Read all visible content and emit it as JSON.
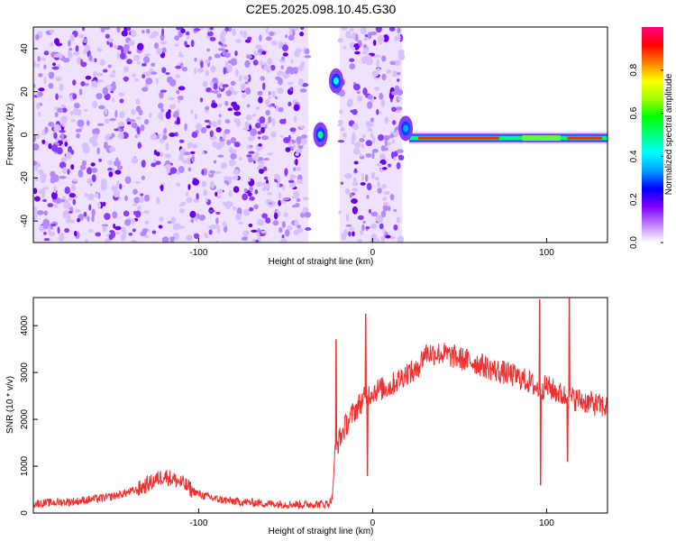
{
  "title": "C2E5.2025.098.10.45.G30",
  "chart_data": [
    {
      "id": "spectrogram",
      "type": "heatmap",
      "xlabel": "Height of straight line (km)",
      "ylabel": "Frequency (Hz)",
      "xlim": [
        -195,
        135
      ],
      "ylim": [
        -50,
        50
      ],
      "xticks": [
        -100,
        0,
        100
      ],
      "xtick_labels": [
        "-100",
        "0",
        "100"
      ],
      "yticks": [
        -40,
        -20,
        0,
        20,
        40
      ],
      "ytick_labels": [
        "-40",
        "-20",
        "0",
        "20",
        "40"
      ],
      "colorbar": {
        "label": "Normalized spectral amplitude",
        "range": [
          0.0,
          1.0
        ],
        "ticks": [
          0.0,
          0.2,
          0.4,
          0.6,
          0.8
        ],
        "tick_labels": [
          "0.0",
          "0.2",
          "0.4",
          "0.6",
          "0.8"
        ],
        "colors": [
          "#ffffff",
          "#c080ff",
          "#8000ff",
          "#0000ff",
          "#00a0ff",
          "#00ffff",
          "#00ff80",
          "#00ff00",
          "#a0ff00",
          "#ffff00",
          "#ff8000",
          "#ff0000",
          "#ff0080"
        ]
      },
      "features": [
        {
          "kind": "streak",
          "x_start": -147,
          "x_end": -125,
          "y_start": 50,
          "y_end": -50,
          "amplitude": 0.15
        },
        {
          "kind": "streak",
          "x_start": -135,
          "x_end": -114,
          "y_start": 50,
          "y_end": -50,
          "amplitude": 0.2
        },
        {
          "kind": "streak",
          "x_start": -116,
          "x_end": -106,
          "y_start": 50,
          "y_end": 10,
          "amplitude": 0.15
        },
        {
          "kind": "streak",
          "x_start": -157,
          "x_end": -146,
          "y_start": 10,
          "y_end": -50,
          "amplitude": 0.15
        },
        {
          "kind": "noise",
          "x_range": [
            -195,
            -37
          ],
          "amplitude": 0.1
        },
        {
          "kind": "noise",
          "x_range": [
            -19,
            17
          ],
          "amplitude": 0.1
        },
        {
          "kind": "carrier",
          "x_range": [
            21,
            135
          ],
          "frequency": -1.5,
          "amplitude": 0.95
        },
        {
          "kind": "burst",
          "x": -30,
          "frequency": 0,
          "amplitude": 0.5
        },
        {
          "kind": "burst",
          "x": -21,
          "frequency": 25,
          "amplitude": 0.45
        },
        {
          "kind": "burst",
          "x": 19,
          "frequency": 3,
          "amplitude": 0.35
        }
      ]
    },
    {
      "id": "snr",
      "type": "line",
      "xlabel": "Height of straight line (km)",
      "ylabel": "SNR (10 * v/v)",
      "xlim": [
        -195,
        135
      ],
      "ylim": [
        0,
        4600
      ],
      "xticks": [
        -100,
        0,
        100
      ],
      "xtick_labels": [
        "-100",
        "0",
        "100"
      ],
      "yticks": [
        0,
        1000,
        2000,
        3000,
        4000
      ],
      "ytick_labels": [
        "0",
        "1000",
        "2000",
        "3000",
        "4000"
      ],
      "color": "#ee3030",
      "x": [
        -195,
        -170,
        -150,
        -135,
        -125,
        -120,
        -110,
        -100,
        -90,
        -80,
        -60,
        -40,
        -25,
        -23,
        -22,
        -20,
        -15,
        -10,
        -6,
        0,
        10,
        20,
        25,
        30,
        40,
        50,
        60,
        70,
        80,
        90,
        95,
        100,
        105,
        110,
        115,
        120,
        125,
        130,
        135
      ],
      "y": [
        200,
        250,
        350,
        500,
        700,
        800,
        650,
        400,
        300,
        250,
        200,
        180,
        200,
        350,
        1200,
        1500,
        1900,
        2200,
        2400,
        2600,
        2700,
        3000,
        3000,
        3420,
        3400,
        3300,
        3200,
        3050,
        2950,
        2800,
        2650,
        2700,
        2600,
        2500,
        2450,
        2400,
        2350,
        2300,
        2250
      ],
      "spikes": [
        {
          "x": -21,
          "y": 3700
        },
        {
          "x": -4,
          "y": 4250
        },
        {
          "x": -3,
          "y": 800
        },
        {
          "x": 96,
          "y": 4550
        },
        {
          "x": 96.5,
          "y": 600
        },
        {
          "x": 113,
          "y": 4650
        },
        {
          "x": 112,
          "y": 1100
        },
        {
          "x": 26,
          "y": 3200
        }
      ]
    }
  ]
}
